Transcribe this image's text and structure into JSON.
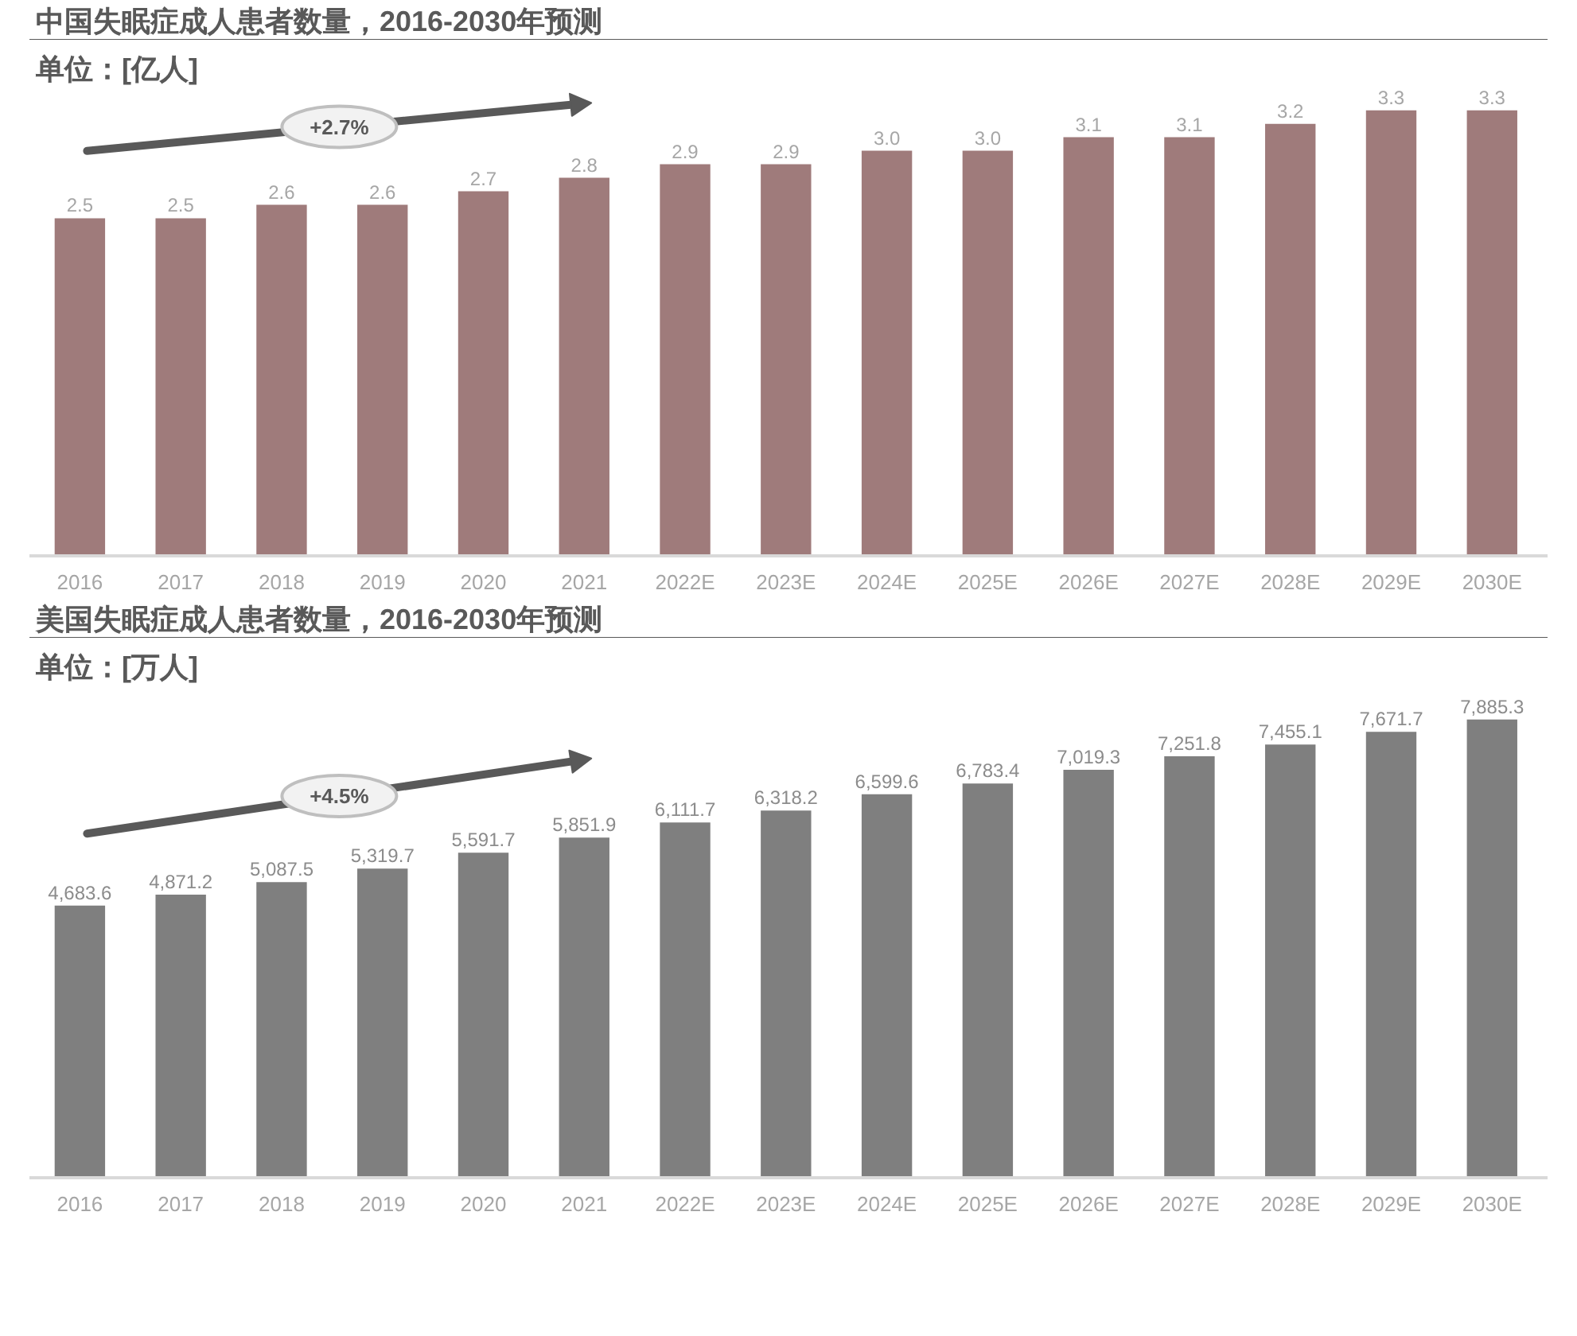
{
  "chart_data": [
    {
      "type": "bar",
      "title": "中国失眠症成人患者数量，2016-2030年预测",
      "subtitle": "单位：[亿人]",
      "categories": [
        "2016",
        "2017",
        "2018",
        "2019",
        "2020",
        "2021",
        "2022E",
        "2023E",
        "2024E",
        "2025E",
        "2026E",
        "2027E",
        "2028E",
        "2029E",
        "2030E"
      ],
      "values": [
        2.5,
        2.5,
        2.6,
        2.6,
        2.7,
        2.8,
        2.9,
        2.9,
        3.0,
        3.0,
        3.1,
        3.1,
        3.2,
        3.3,
        3.3
      ],
      "value_labels": [
        "2.5",
        "2.5",
        "2.6",
        "2.6",
        "2.7",
        "2.8",
        "2.9",
        "2.9",
        "3.0",
        "3.0",
        "3.1",
        "3.1",
        "3.2",
        "3.3",
        "3.3"
      ],
      "color": "#9f7b7b",
      "annotations": [
        "+2.7%"
      ]
    },
    {
      "type": "bar",
      "title": "美国失眠症成人患者数量，2016-2030年预测",
      "subtitle": "单位：[万人]",
      "categories": [
        "2016",
        "2017",
        "2018",
        "2019",
        "2020",
        "2021",
        "2022E",
        "2023E",
        "2024E",
        "2025E",
        "2026E",
        "2027E",
        "2028E",
        "2029E",
        "2030E"
      ],
      "values": [
        4683.6,
        4871.2,
        5087.5,
        5319.7,
        5591.7,
        5851.9,
        6111.7,
        6318.2,
        6599.6,
        6783.4,
        7019.3,
        7251.8,
        7455.1,
        7671.7,
        7885.3
      ],
      "value_labels": [
        "4,683.6",
        "4,871.2",
        "5,087.5",
        "5,319.7",
        "5,591.7",
        "5,851.9",
        "6,111.7",
        "6,318.2",
        "6,599.6",
        "6,783.4",
        "7,019.3",
        "7,251.8",
        "7,455.1",
        "7,671.7",
        "7,885.3"
      ],
      "color": "#7f7f7f",
      "annotations": [
        "+4.5%"
      ]
    }
  ]
}
